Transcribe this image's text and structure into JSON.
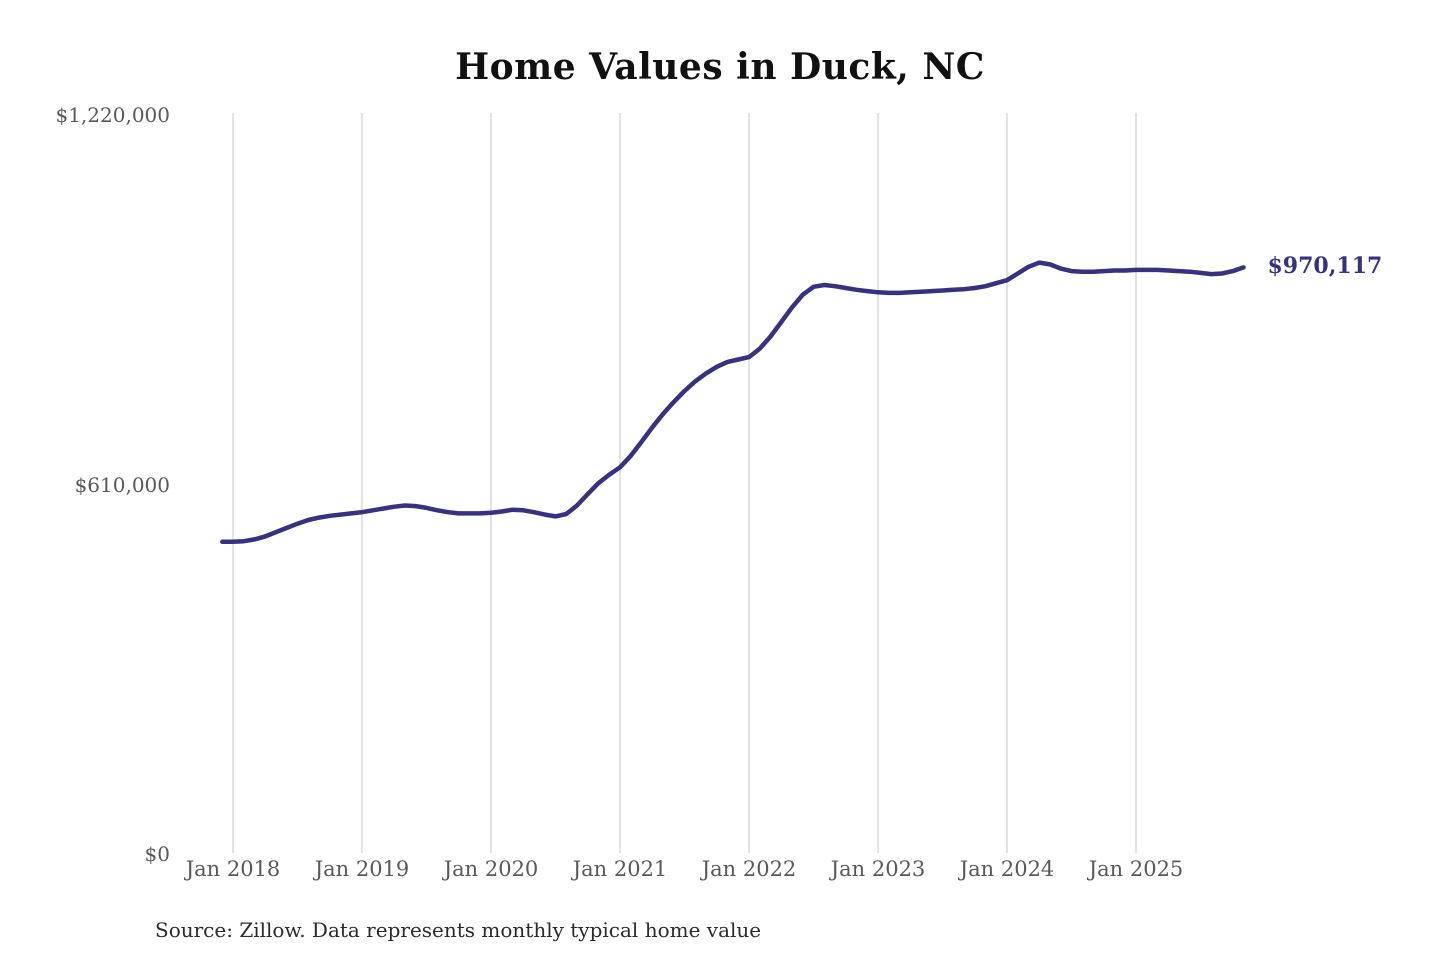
{
  "chart_data": {
    "type": "line",
    "title": "Home Values in Duck, NC",
    "source_note": "Source: Zillow. Data represents monthly typical home value",
    "end_label": "$970,117",
    "end_value": 970117,
    "line_color": "#373180",
    "grid_color": "#d4d4d4",
    "axis_label_color": "#595959",
    "title_color": "#111111",
    "ylim": [
      0,
      1220000
    ],
    "y_ticks": [
      {
        "label": "$1,220,000",
        "value": 1220000
      },
      {
        "label": "$610,000",
        "value": 610000
      },
      {
        "label": "$0",
        "value": 0
      }
    ],
    "x_ticks": [
      "Jan 2018",
      "Jan 2019",
      "Jan 2020",
      "Jan 2021",
      "Jan 2022",
      "Jan 2023",
      "Jan 2024",
      "Jan 2025"
    ],
    "legend": "none",
    "grid": "vertical-only",
    "x": [
      "2017-12",
      "2018-01",
      "2018-02",
      "2018-03",
      "2018-04",
      "2018-05",
      "2018-06",
      "2018-07",
      "2018-08",
      "2018-09",
      "2018-10",
      "2018-11",
      "2018-12",
      "2019-01",
      "2019-02",
      "2019-03",
      "2019-04",
      "2019-05",
      "2019-06",
      "2019-07",
      "2019-08",
      "2019-09",
      "2019-10",
      "2019-11",
      "2019-12",
      "2020-01",
      "2020-02",
      "2020-03",
      "2020-04",
      "2020-05",
      "2020-06",
      "2020-07",
      "2020-08",
      "2020-09",
      "2020-10",
      "2020-11",
      "2020-12",
      "2021-01",
      "2021-02",
      "2021-03",
      "2021-04",
      "2021-05",
      "2021-06",
      "2021-07",
      "2021-08",
      "2021-09",
      "2021-10",
      "2021-11",
      "2021-12",
      "2022-01",
      "2022-02",
      "2022-03",
      "2022-04",
      "2022-05",
      "2022-06",
      "2022-07",
      "2022-08",
      "2022-09",
      "2022-10",
      "2022-11",
      "2022-12",
      "2023-01",
      "2023-02",
      "2023-03",
      "2023-04",
      "2023-05",
      "2023-06",
      "2023-07",
      "2023-08",
      "2023-09",
      "2023-10",
      "2023-11",
      "2023-12",
      "2024-01",
      "2024-02",
      "2024-03",
      "2024-04",
      "2024-05",
      "2024-06",
      "2024-07",
      "2024-08",
      "2024-09",
      "2024-10",
      "2024-11",
      "2024-12",
      "2025-01",
      "2025-02",
      "2025-03",
      "2025-04",
      "2025-05",
      "2025-06",
      "2025-07",
      "2025-08",
      "2025-09",
      "2025-10",
      "2025-11"
    ],
    "series": [
      {
        "name": "Typical home value",
        "values": [
          517000,
          517000,
          518000,
          521000,
          526000,
          533000,
          540000,
          547000,
          553000,
          557000,
          560000,
          562000,
          564000,
          566000,
          569000,
          572000,
          575000,
          577000,
          576000,
          573000,
          569000,
          566000,
          564000,
          564000,
          564000,
          565000,
          567000,
          570000,
          569000,
          566000,
          562000,
          559000,
          563000,
          577000,
          596000,
          614000,
          628000,
          640000,
          659000,
          682000,
          706000,
          728000,
          748000,
          766000,
          782000,
          795000,
          806000,
          814000,
          818000,
          822000,
          836000,
          856000,
          880000,
          904000,
          925000,
          938000,
          941000,
          939000,
          936000,
          933000,
          931000,
          929000,
          928000,
          928000,
          929000,
          930000,
          931000,
          932000,
          933000,
          934000,
          936000,
          939000,
          944000,
          949000,
          960000,
          971000,
          978000,
          975000,
          968000,
          964000,
          963000,
          963000,
          964000,
          965000,
          965000,
          966000,
          966000,
          966000,
          965000,
          964000,
          963000,
          961000,
          959000,
          960000,
          964000,
          970117
        ]
      }
    ]
  }
}
